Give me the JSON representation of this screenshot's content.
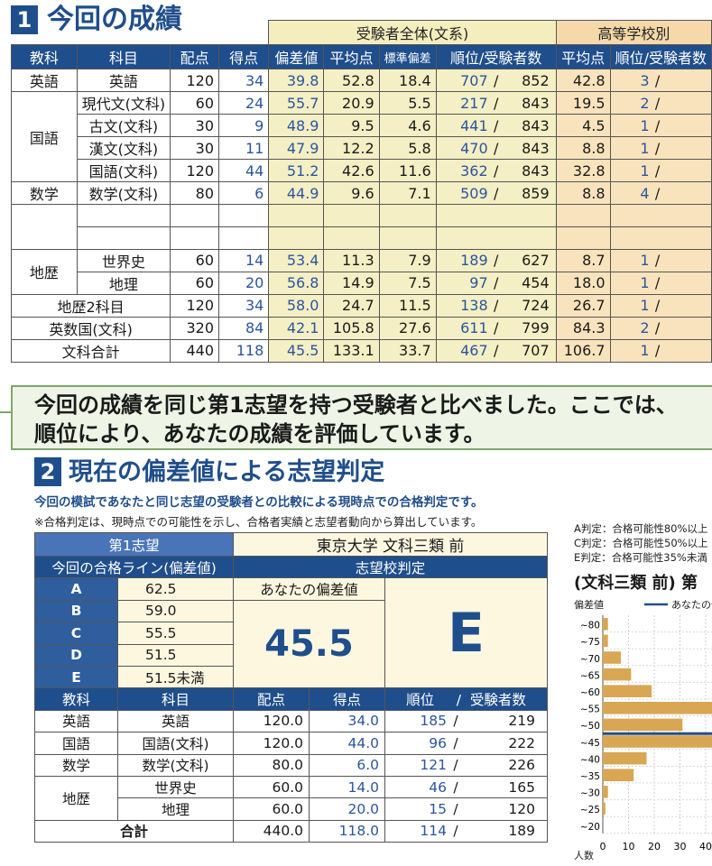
{
  "section1": {
    "number": "1",
    "title": "今回の成績",
    "group_exam": "受験者全体(文系)",
    "group_school": "高等学校別",
    "headers": [
      "教科",
      "科目",
      "配点",
      "得点",
      "偏差値",
      "平均点",
      "標準偏差",
      "順位/受験者数",
      "平均点",
      "順位/受験者数"
    ],
    "rows": [
      {
        "subject": "英語",
        "course": "英語",
        "max": "120",
        "score": "34",
        "dev": "39.8",
        "avg": "52.8",
        "sd": "18.4",
        "rank": "707",
        "total": "852",
        "s_avg": "42.8",
        "s_rank": "3"
      },
      {
        "subject": "国語",
        "course": "現代文(文科)",
        "max": "60",
        "score": "24",
        "dev": "55.7",
        "avg": "20.9",
        "sd": "5.5",
        "rank": "217",
        "total": "843",
        "s_avg": "19.5",
        "s_rank": "2"
      },
      {
        "subject": "",
        "course": "古文(文科)",
        "max": "30",
        "score": "9",
        "dev": "48.9",
        "avg": "9.5",
        "sd": "4.6",
        "rank": "441",
        "total": "843",
        "s_avg": "4.5",
        "s_rank": "1"
      },
      {
        "subject": "",
        "course": "漢文(文科)",
        "max": "30",
        "score": "11",
        "dev": "47.9",
        "avg": "12.2",
        "sd": "5.8",
        "rank": "470",
        "total": "843",
        "s_avg": "8.8",
        "s_rank": "1"
      },
      {
        "subject": "",
        "course": "国語(文科)",
        "max": "120",
        "score": "44",
        "dev": "51.2",
        "avg": "42.6",
        "sd": "11.6",
        "rank": "362",
        "total": "843",
        "s_avg": "32.8",
        "s_rank": "1"
      },
      {
        "subject": "数学",
        "course": "数学(文科)",
        "max": "80",
        "score": "6",
        "dev": "44.9",
        "avg": "9.6",
        "sd": "7.1",
        "rank": "509",
        "total": "859",
        "s_avg": "8.8",
        "s_rank": "4"
      },
      {
        "subject": "地歴",
        "course": "世界史",
        "max": "60",
        "score": "14",
        "dev": "53.4",
        "avg": "11.3",
        "sd": "7.9",
        "rank": "189",
        "total": "627",
        "s_avg": "8.7",
        "s_rank": "1"
      },
      {
        "subject": "",
        "course": "地理",
        "max": "60",
        "score": "20",
        "dev": "56.8",
        "avg": "14.9",
        "sd": "7.5",
        "rank": "97",
        "total": "454",
        "s_avg": "18.0",
        "s_rank": "1"
      },
      {
        "subject": "地歴2科目",
        "course": "",
        "max": "120",
        "score": "34",
        "dev": "58.0",
        "avg": "24.7",
        "sd": "11.5",
        "rank": "138",
        "total": "724",
        "s_avg": "26.7",
        "s_rank": "1"
      },
      {
        "subject": "英数国(文科)",
        "course": "",
        "max": "320",
        "score": "84",
        "dev": "42.1",
        "avg": "105.8",
        "sd": "27.6",
        "rank": "611",
        "total": "799",
        "s_avg": "84.3",
        "s_rank": "2"
      },
      {
        "subject": "文科合計",
        "course": "",
        "max": "440",
        "score": "118",
        "dev": "45.5",
        "avg": "133.1",
        "sd": "33.7",
        "rank": "467",
        "total": "707",
        "s_avg": "106.7",
        "s_rank": "1"
      }
    ]
  },
  "info": {
    "line1": "今回の成績を同じ第1志望を持つ受験者と比べました。ここでは、",
    "line2": "順位により、あなたの成績を評価しています。"
  },
  "section2": {
    "number": "2",
    "title": "現在の偏差値による志望判定",
    "subtitle": "今回の模試であなたと同じ志望の受験者との比較による現時点での合格判定です。",
    "note": "※合格判定は、現時点での可能性を示し、合格者実績と志望者動向から算出しています。",
    "first_choice_label": "第1志望",
    "first_choice_value": "東京大学 文科三類 前",
    "pass_line_label": "今回の合格ライン(偏差値)",
    "judgment_label": "志望校判定",
    "your_dev_label": "あなたの偏差値",
    "your_dev": "45.5",
    "judgment": "E",
    "grades": [
      {
        "grade": "A",
        "value": "62.5"
      },
      {
        "grade": "B",
        "value": "59.0"
      },
      {
        "grade": "C",
        "value": "55.5"
      },
      {
        "grade": "D",
        "value": "51.5"
      },
      {
        "grade": "E",
        "value": "51.5未満"
      }
    ],
    "headers": [
      "教科",
      "科目",
      "配点",
      "得点",
      "順位",
      "/",
      "受験者数"
    ],
    "rows": [
      {
        "subject": "英語",
        "course": "英語",
        "max": "120.0",
        "score": "34.0",
        "rank": "185",
        "total": "219"
      },
      {
        "subject": "国語",
        "course": "国語(文科)",
        "max": "120.0",
        "score": "44.0",
        "rank": "96",
        "total": "222"
      },
      {
        "subject": "数学",
        "course": "数学(文科)",
        "max": "80.0",
        "score": "6.0",
        "rank": "121",
        "total": "226"
      },
      {
        "subject": "地歴",
        "course": "世界史",
        "max": "60.0",
        "score": "14.0",
        "rank": "46",
        "total": "165"
      },
      {
        "subject": "",
        "course": "地理",
        "max": "60.0",
        "score": "20.0",
        "rank": "15",
        "total": "120"
      }
    ],
    "total_row": {
      "label": "合計",
      "max": "440.0",
      "score": "118.0",
      "rank": "114",
      "total": "189"
    }
  },
  "side": {
    "legend_a": "A判定：合格可能性80%以上",
    "legend_c": "C判定：合格可能性50%以上",
    "legend_e": "E判定：合格可能性35%未満",
    "chart_title": "(文科三類 前) 第",
    "ylabel": "偏差値",
    "legend_series": "あなたの偏差値",
    "xlabel": "人数"
  },
  "chart_data": {
    "type": "bar",
    "orientation": "horizontal",
    "categories": [
      "~80",
      "~75",
      "~70",
      "~65",
      "~60",
      "~55",
      "~50",
      "~45",
      "~40",
      "~35",
      "~30",
      "~25",
      "~20"
    ],
    "values": [
      2,
      2,
      7,
      11,
      19,
      45,
      31,
      45,
      17,
      12,
      2,
      1,
      0
    ],
    "xticks": [
      "0",
      "10",
      "20",
      "30",
      "40"
    ],
    "xlim": [
      0,
      45
    ],
    "your_value": 45.5,
    "bar_color": "#d9a653",
    "marker_color": "#1f4e8c"
  }
}
